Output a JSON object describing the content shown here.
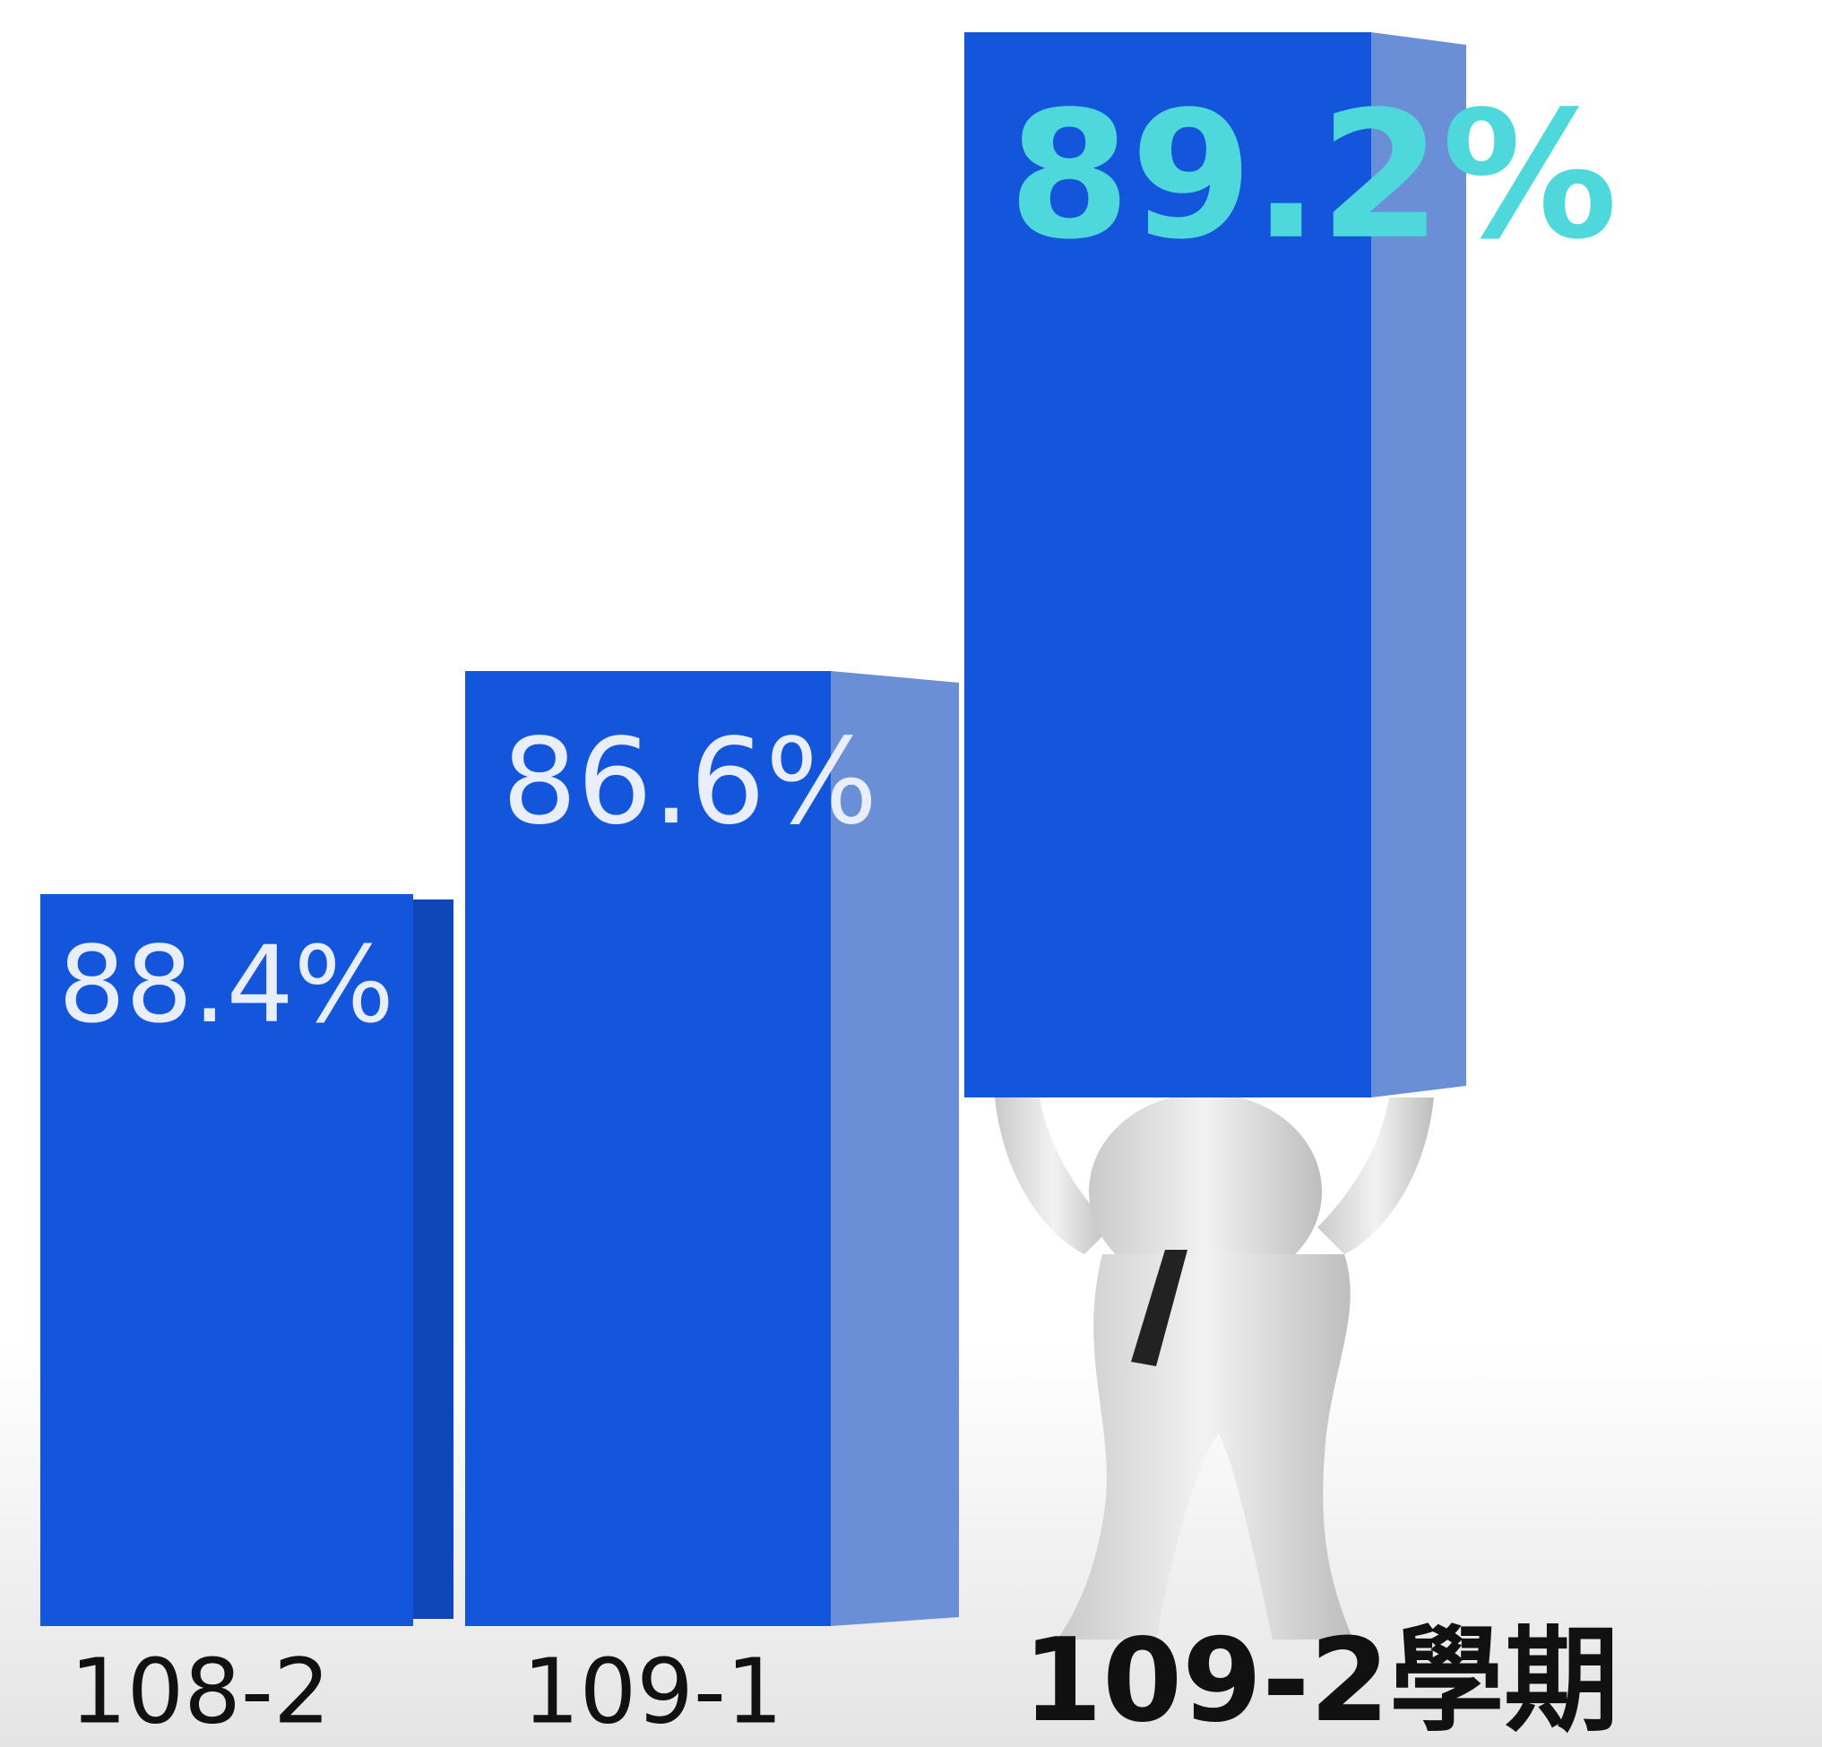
{
  "items": [
    {
      "label": "108-2",
      "rate": "88.4%"
    },
    {
      "label": "109-1",
      "rate": "86.6%"
    },
    {
      "label": "109-2學期",
      "rate": "89.2%"
    }
  ]
}
